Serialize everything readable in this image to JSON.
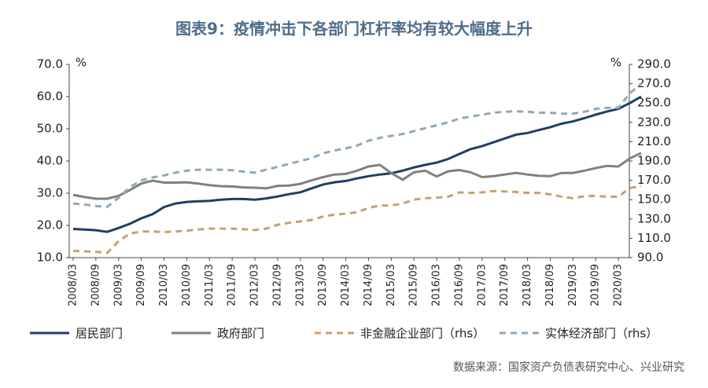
{
  "chart_data": {
    "type": "line",
    "title": "图表9：疫情冲击下各部门杠杆率均有较大幅度上升",
    "source": "数据来源：国家资产负债表研究中心、兴业研究",
    "y_unit": "%",
    "y2_unit": "%",
    "categories": [
      "2008/03",
      null,
      "2008/09",
      null,
      "2009/03",
      null,
      "2009/09",
      null,
      "2010/03",
      null,
      "2010/09",
      null,
      "2011/03",
      null,
      "2011/09",
      null,
      "2012/03",
      null,
      "2012/09",
      null,
      "2013/03",
      null,
      "2013/09",
      null,
      "2014/03",
      null,
      "2014/09",
      null,
      "2015/03",
      null,
      "2015/09",
      null,
      "2016/03",
      null,
      "2016/09",
      null,
      "2017/03",
      null,
      "2017/09",
      null,
      "2018/03",
      null,
      "2018/09",
      null,
      "2019/03",
      null,
      "2019/09",
      null,
      "2020/03",
      null,
      null
    ],
    "ylim": [
      10,
      70
    ],
    "yticks": [
      {
        "value": 10,
        "label": "10.0"
      },
      {
        "value": 20,
        "label": "20.0"
      },
      {
        "value": 30,
        "label": "30.0"
      },
      {
        "value": 40,
        "label": "40.0"
      },
      {
        "value": 50,
        "label": "50.0"
      },
      {
        "value": 60,
        "label": "60.0"
      },
      {
        "value": 70,
        "label": "70.0"
      }
    ],
    "y2lim": [
      90,
      290
    ],
    "y2ticks": [
      {
        "value": 90,
        "label": "90.0"
      },
      {
        "value": 110,
        "label": "110.0"
      },
      {
        "value": 130,
        "label": "130.0"
      },
      {
        "value": 150,
        "label": "150.0"
      },
      {
        "value": 170,
        "label": "170.0"
      },
      {
        "value": 190,
        "label": "190.0"
      },
      {
        "value": 210,
        "label": "210.0"
      },
      {
        "value": 230,
        "label": "230.0"
      },
      {
        "value": 250,
        "label": "250.0"
      },
      {
        "value": 270,
        "label": "270.0"
      },
      {
        "value": 290,
        "label": "290.0"
      }
    ],
    "grid": false,
    "series": [
      {
        "name": "居民部门",
        "color": "#1f3f64",
        "dash": false,
        "values": [
          18.9,
          18.7,
          18.5,
          18.0,
          19.2,
          20.5,
          22.2,
          23.5,
          25.7,
          26.8,
          27.3,
          27.5,
          27.6,
          28.0,
          28.2,
          28.2,
          28.0,
          28.4,
          29.0,
          29.7,
          30.3,
          31.5,
          32.7,
          33.4,
          33.8,
          34.6,
          35.3,
          35.8,
          36.2,
          37.0,
          38.0,
          38.8,
          39.5,
          40.6,
          42.2,
          43.7,
          44.6,
          45.8,
          47.0,
          48.2,
          48.7,
          49.6,
          50.5,
          51.6,
          52.3,
          53.3,
          54.4,
          55.4,
          56.2,
          58.0,
          60.0
        ]
      },
      {
        "name": "政府部门",
        "color": "#808080",
        "dash": false,
        "values": [
          29.5,
          28.8,
          28.3,
          28.3,
          29.2,
          31.0,
          33.0,
          33.9,
          33.3,
          33.3,
          33.4,
          33.0,
          32.5,
          32.2,
          32.1,
          31.8,
          31.7,
          31.5,
          32.3,
          32.4,
          32.9,
          34.0,
          35.0,
          35.8,
          36.0,
          37.0,
          38.3,
          38.8,
          36.3,
          34.2,
          36.5,
          37.0,
          35.2,
          36.8,
          37.2,
          36.5,
          35.0,
          35.3,
          35.8,
          36.3,
          35.8,
          35.4,
          35.3,
          36.3,
          36.3,
          37.0,
          37.8,
          38.5,
          38.3,
          40.8,
          42.5
        ]
      },
      {
        "name": "非金融企业部门（rhs）",
        "color": "#c9a06a",
        "dash": true,
        "axis": "y2",
        "values": [
          97,
          96.5,
          96,
          95,
          107,
          115,
          117,
          117,
          116.5,
          117,
          118,
          119,
          120,
          120,
          120,
          119.5,
          118.5,
          120,
          124,
          126,
          127.5,
          129,
          132.5,
          134.5,
          135.5,
          137,
          141.5,
          144,
          144,
          146,
          150,
          151.5,
          152,
          153,
          157.5,
          157,
          157.5,
          159,
          158.5,
          158,
          157,
          157,
          155.5,
          153,
          151.5,
          153.5,
          154,
          153,
          153,
          162,
          164
        ]
      },
      {
        "name": "实体经济部门（rhs）",
        "color": "#8fa9b8",
        "dash": true,
        "axis": "y2",
        "values": [
          146,
          145,
          143.5,
          142.5,
          152,
          163,
          170,
          173,
          175,
          178,
          180,
          181,
          181,
          181,
          180.5,
          179,
          178,
          181,
          184,
          187,
          190,
          193,
          198,
          201,
          203,
          206,
          211,
          214,
          216,
          218,
          221,
          224,
          227,
          230,
          234,
          236,
          238,
          240,
          241,
          241.5,
          241,
          240,
          240,
          239,
          239,
          241,
          244,
          245,
          245,
          260,
          270
        ]
      }
    ]
  }
}
